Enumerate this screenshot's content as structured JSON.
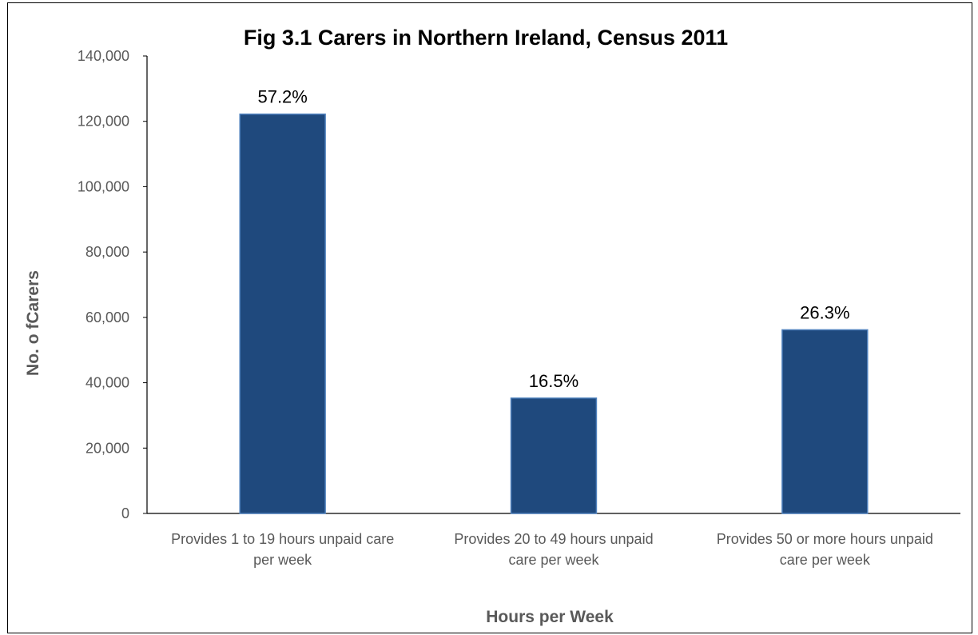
{
  "chart_data": {
    "type": "bar",
    "title": "Fig 3.1  Carers in Northern Ireland, Census 2011",
    "xlabel": "Hours per Week",
    "ylabel": "No. o fCarers",
    "ylim": [
      0,
      140000
    ],
    "yticks": [
      0,
      20000,
      40000,
      60000,
      80000,
      100000,
      120000,
      140000
    ],
    "ytick_labels": [
      "0",
      "20,000",
      "40,000",
      "60,000",
      "80,000",
      "100,000",
      "120,000",
      "140,000"
    ],
    "categories": [
      [
        "Provides 1 to 19 hours unpaid care",
        "per week"
      ],
      [
        "Provides 20 to 49 hours unpaid",
        "care per week"
      ],
      [
        "Provides 50 or more hours unpaid",
        "care per week"
      ]
    ],
    "values": [
      122200,
      35300,
      56200
    ],
    "data_labels": [
      "57.2%",
      "16.5%",
      "26.3%"
    ],
    "bar_color": "#1F497D",
    "bar_edge_color": "#4F81BD",
    "grid": false,
    "legend": "none"
  }
}
